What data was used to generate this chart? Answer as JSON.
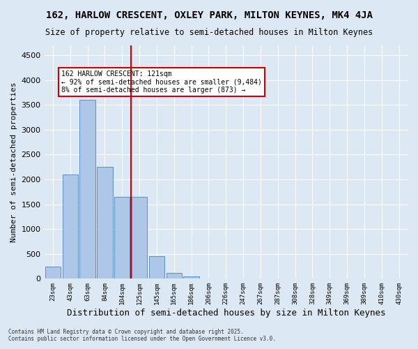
{
  "title1": "162, HARLOW CRESCENT, OXLEY PARK, MILTON KEYNES, MK4 4JA",
  "title2": "Size of property relative to semi-detached houses in Milton Keynes",
  "xlabel": "Distribution of semi-detached houses by size in Milton Keynes",
  "ylabel": "Number of semi-detached properties",
  "categories": [
    "23sqm",
    "43sqm",
    "63sqm",
    "84sqm",
    "104sqm",
    "125sqm",
    "145sqm",
    "165sqm",
    "186sqm",
    "206sqm",
    "226sqm",
    "247sqm",
    "267sqm",
    "287sqm",
    "308sqm",
    "328sqm",
    "349sqm",
    "369sqm",
    "389sqm",
    "410sqm",
    "430sqm"
  ],
  "values": [
    250,
    2100,
    3600,
    2250,
    1650,
    1650,
    450,
    120,
    50,
    10,
    0,
    0,
    0,
    0,
    0,
    0,
    0,
    0,
    0,
    0,
    0
  ],
  "bar_color": "#aec6e8",
  "bar_edge_color": "#5a8fc2",
  "red_line_index": 4.5,
  "annotation_title": "162 HARLOW CRESCENT: 121sqm",
  "annotation_line1": "← 92% of semi-detached houses are smaller (9,484)",
  "annotation_line2": "8% of semi-detached houses are larger (873) →",
  "annotation_box_color": "#ffffff",
  "annotation_box_edge": "#cc0000",
  "ylim": [
    0,
    4700
  ],
  "yticks": [
    0,
    500,
    1000,
    1500,
    2000,
    2500,
    3000,
    3500,
    4000,
    4500
  ],
  "background_color": "#dce9f5",
  "grid_color": "#ffffff",
  "footer1": "Contains HM Land Registry data © Crown copyright and database right 2025.",
  "footer2": "Contains public sector information licensed under the Open Government Licence v3.0.",
  "font_family": "monospace"
}
